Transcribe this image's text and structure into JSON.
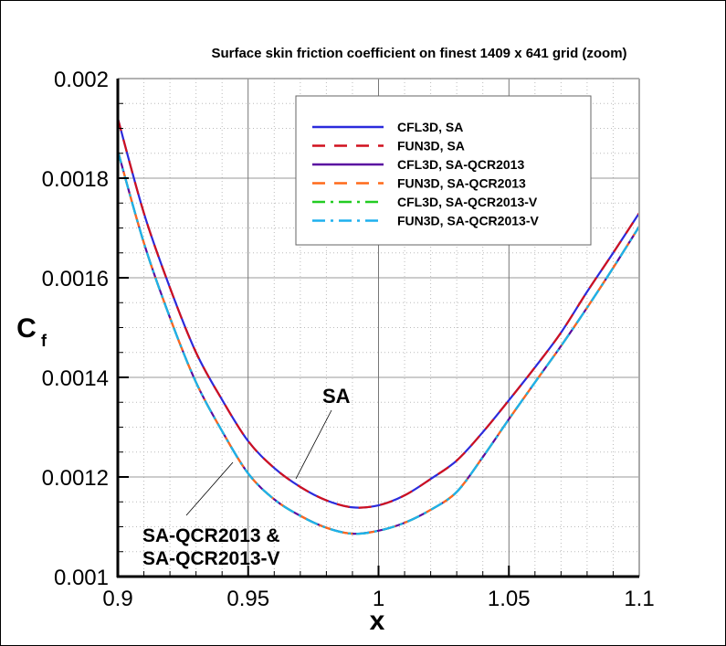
{
  "chart_data": {
    "type": "line",
    "title": "Surface skin friction coefficient on finest 1409 x 641 grid (zoom)",
    "xlabel": "x",
    "ylabel": "C",
    "ylabel_subscript": "f",
    "xlim": [
      0.9,
      1.1
    ],
    "ylim": [
      0.001,
      0.002
    ],
    "xticks": [
      "0.9",
      "0.95",
      "1",
      "1.05",
      "1.1"
    ],
    "yticks": [
      "0.001",
      "0.0012",
      "0.0014",
      "0.0016",
      "0.0018",
      "0.002"
    ],
    "grid": true,
    "legend_placement": "top-right",
    "x": [
      0.9,
      0.91,
      0.92,
      0.93,
      0.94,
      0.95,
      0.96,
      0.97,
      0.98,
      0.99,
      1.0,
      1.01,
      1.02,
      1.03,
      1.04,
      1.05,
      1.06,
      1.07,
      1.08,
      1.09,
      1.1
    ],
    "series": [
      {
        "name": "CFL3D, SA",
        "color": "#2b2bdc",
        "dash": "solid",
        "group": "SA"
      },
      {
        "name": "FUN3D, SA",
        "color": "#d0101e",
        "dash": "dashed",
        "group": "SA"
      },
      {
        "name": "CFL3D, SA-QCR2013",
        "color": "#5a0aa0",
        "dash": "solid",
        "group": "QCR"
      },
      {
        "name": "FUN3D, SA-QCR2013",
        "color": "#ff6a1a",
        "dash": "dashed",
        "group": "QCR"
      },
      {
        "name": "CFL3D, SA-QCR2013-V",
        "color": "#22cc22",
        "dash": "dashdot",
        "group": "QCR"
      },
      {
        "name": "FUN3D, SA-QCR2013-V",
        "color": "#1eb0ee",
        "dash": "dashdot",
        "group": "QCR"
      }
    ],
    "group_values": {
      "SA": [
        0.00192,
        0.00173,
        0.00158,
        0.00145,
        0.001355,
        0.001272,
        0.001218,
        0.00118,
        0.001153,
        0.001139,
        0.001143,
        0.001163,
        0.001196,
        0.001233,
        0.00129,
        0.001354,
        0.00142,
        0.00149,
        0.001572,
        0.00165,
        0.00173
      ],
      "QCR": [
        0.001855,
        0.00167,
        0.00152,
        0.00139,
        0.001292,
        0.001207,
        0.001155,
        0.001122,
        0.001098,
        0.001086,
        0.001092,
        0.001108,
        0.001134,
        0.00117,
        0.00124,
        0.001316,
        0.00139,
        0.001463,
        0.00154,
        0.00162,
        0.001703
      ]
    },
    "annotations": [
      {
        "text": "SA",
        "target_x": 0.968,
        "target_y": 0.001185
      },
      {
        "lines": [
          "SA-QCR2013 &",
          "SA-QCR2013-V"
        ],
        "target_x": 0.9445,
        "target_y": 0.001228
      }
    ]
  }
}
